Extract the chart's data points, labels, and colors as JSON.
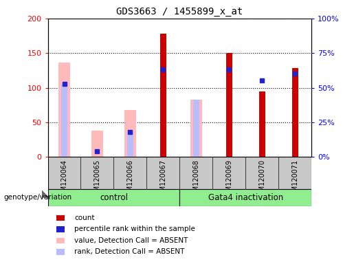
{
  "title": "GDS3663 / 1455899_x_at",
  "samples": [
    "GSM120064",
    "GSM120065",
    "GSM120066",
    "GSM120067",
    "GSM120068",
    "GSM120069",
    "GSM120070",
    "GSM120071"
  ],
  "count": [
    0,
    0,
    0,
    178,
    0,
    150,
    95,
    128
  ],
  "percentile_rank": [
    106,
    8,
    36,
    126,
    0,
    126,
    111,
    121
  ],
  "value_absent": [
    136,
    38,
    68,
    0,
    83,
    0,
    0,
    0
  ],
  "rank_absent": [
    106,
    0,
    36,
    0,
    83,
    0,
    0,
    0
  ],
  "ylim_left": [
    0,
    200
  ],
  "ylim_right": [
    0,
    100
  ],
  "yticks_left": [
    0,
    50,
    100,
    150,
    200
  ],
  "ytick_labels_left": [
    "0",
    "50",
    "100",
    "150",
    "200"
  ],
  "yticks_right_vals": [
    0,
    25,
    50,
    75,
    100
  ],
  "ytick_labels_right": [
    "0%",
    "25%",
    "50%",
    "75%",
    "100%"
  ],
  "color_count": "#cc0000",
  "color_rank": "#2222cc",
  "color_value_absent": "#ffbbbb",
  "color_rank_absent": "#bbbbff",
  "bg_xtick": "#c8c8c8",
  "bg_control": "#90ee90",
  "bg_gata4": "#90ee90",
  "legend_items": [
    {
      "color": "#cc0000",
      "label": "count"
    },
    {
      "color": "#2222cc",
      "label": "percentile rank within the sample"
    },
    {
      "color": "#ffbbbb",
      "label": "value, Detection Call = ABSENT"
    },
    {
      "color": "#bbbbff",
      "label": "rank, Detection Call = ABSENT"
    }
  ]
}
